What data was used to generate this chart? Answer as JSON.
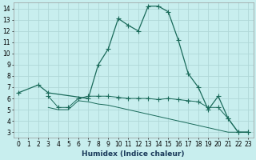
{
  "xlabel": "Humidex (Indice chaleur)",
  "bg_color": "#c8eeee",
  "grid_color": "#b0d8d8",
  "line_color": "#1a6a5a",
  "ylim": [
    2.5,
    14.5
  ],
  "xlim": [
    -0.5,
    23.5
  ],
  "yticks": [
    3,
    4,
    5,
    6,
    7,
    8,
    9,
    10,
    11,
    12,
    13,
    14
  ],
  "xticks": [
    0,
    1,
    2,
    3,
    4,
    5,
    6,
    7,
    8,
    9,
    10,
    11,
    12,
    13,
    14,
    15,
    16,
    17,
    18,
    19,
    20,
    21,
    22,
    23
  ],
  "line1_x": [
    0,
    2,
    3,
    7,
    8,
    9,
    10,
    11,
    12,
    13,
    14,
    15,
    16,
    17,
    18,
    19,
    20,
    21,
    22,
    23
  ],
  "line1_y": [
    6.5,
    7.2,
    6.5,
    6.0,
    9.0,
    10.4,
    13.1,
    12.5,
    12.0,
    14.2,
    14.2,
    13.7,
    11.2,
    8.2,
    7.0,
    5.0,
    6.2,
    4.2,
    3.0,
    3.0
  ],
  "line2_x": [
    3,
    4,
    5,
    6,
    7,
    8,
    9,
    10,
    11,
    12,
    13,
    14,
    15,
    16,
    17,
    18,
    19,
    20,
    21,
    22,
    23
  ],
  "line2_y": [
    6.2,
    5.2,
    5.2,
    6.0,
    6.2,
    6.2,
    6.2,
    6.1,
    6.0,
    6.0,
    6.0,
    5.9,
    6.0,
    5.9,
    5.8,
    5.7,
    5.2,
    5.2,
    4.2,
    3.0,
    3.0
  ],
  "line3_x": [
    3,
    4,
    5,
    6,
    7,
    8,
    9,
    10,
    11,
    12,
    13,
    14,
    15,
    16,
    17,
    18,
    19,
    20,
    21,
    22,
    23
  ],
  "line3_y": [
    5.2,
    5.0,
    5.0,
    5.8,
    5.7,
    5.5,
    5.4,
    5.2,
    5.0,
    4.8,
    4.6,
    4.4,
    4.2,
    4.0,
    3.8,
    3.6,
    3.4,
    3.2,
    3.0,
    3.0,
    3.0
  ]
}
